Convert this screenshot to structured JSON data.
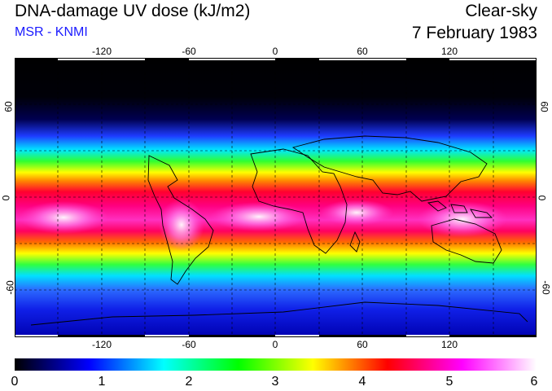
{
  "header": {
    "title": "DNA-damage UV dose (kJ/m2)",
    "subtitle": "MSR - KNMI",
    "condition": "Clear-sky",
    "date": "7 February 1983"
  },
  "map": {
    "longitude_ticks_top": [
      "-120",
      "-60",
      "0",
      "60",
      "120"
    ],
    "longitude_ticks_bottom": [
      "-120",
      "-60",
      "0",
      "60",
      "120"
    ],
    "latitude_ticks_left": [
      "60",
      "0",
      "-60"
    ],
    "latitude_ticks_right": [
      "60",
      "0",
      "-60"
    ],
    "lon_range": [
      -180,
      180
    ],
    "lat_range": [
      -90,
      90
    ],
    "gridlines": "dashed"
  },
  "colorbar": {
    "ticks": [
      "0",
      "1",
      "2",
      "3",
      "4",
      "5",
      "6"
    ],
    "range": [
      0,
      6
    ],
    "colors": [
      "#000000",
      "#0000ff",
      "#00ffff",
      "#00ff00",
      "#ffff00",
      "#ff0000",
      "#ff00ff",
      "#ffffff"
    ]
  }
}
